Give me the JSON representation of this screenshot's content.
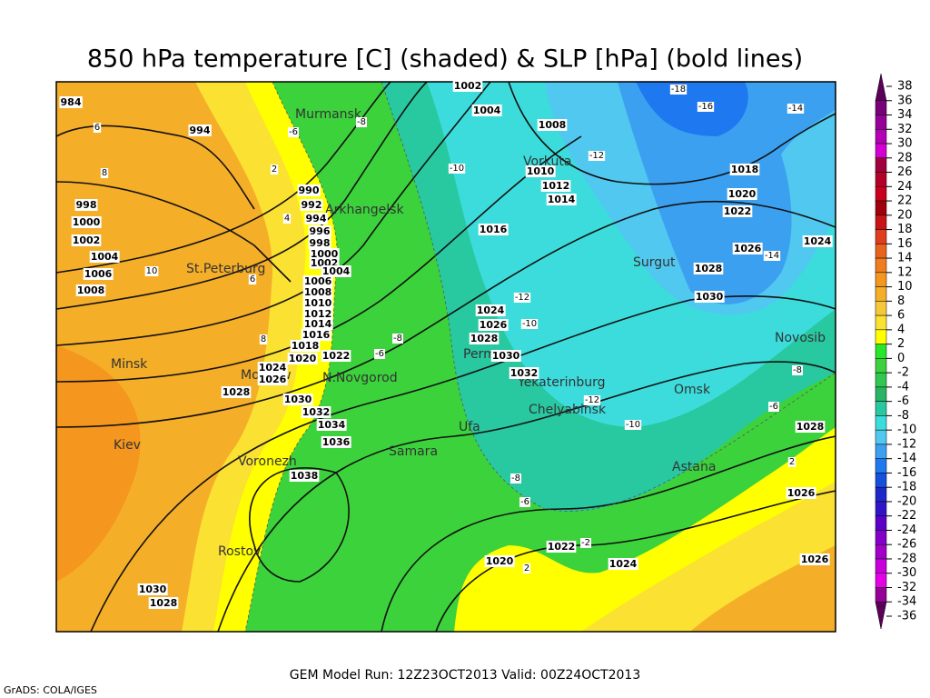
{
  "header": {
    "title": "850 hPa temperature [C] (shaded) & SLP [hPa] (bold lines)"
  },
  "footer": {
    "run": "GEM Model Run: 12Z23OCT2013 Valid: 00Z24OCT2013",
    "credit": "GrADS: COLA/IGES"
  },
  "cities": [
    "Murmansk",
    "Arkhangelsk",
    "St.Peterburg",
    "Minsk",
    "Moskow",
    "N.Novgorod",
    "Kiev",
    "Voronezh",
    "Rostov",
    "Samara",
    "Ufa",
    "Perm",
    "Vorkuta",
    "Surgut",
    "Yekaterinburg",
    "Chelyabinsk",
    "Omsk",
    "Novosib",
    "Astana"
  ],
  "pressure_labels": [
    984,
    994,
    1002,
    1004,
    1008,
    1010,
    1012,
    1014,
    1016,
    990,
    992,
    994,
    996,
    998,
    1000,
    1002,
    1004,
    998,
    1000,
    1002,
    1004,
    1006,
    1008,
    1006,
    1008,
    1010,
    1012,
    1014,
    1016,
    1018,
    1020,
    1022,
    1024,
    1026,
    1028,
    1030,
    1032,
    1034,
    1036,
    1038,
    1024,
    1026,
    1028,
    1030,
    1032,
    1018,
    1020,
    1022,
    1026,
    1024,
    1028,
    1030,
    1028,
    1026,
    1020,
    1022,
    1024,
    1026,
    1030,
    1028
  ],
  "temperature_labels": [
    -18,
    -16,
    -14,
    -6,
    -8,
    -10,
    -12,
    -14,
    -12,
    -10,
    -8,
    -6,
    -12,
    -10,
    -8,
    -6,
    -8,
    -6,
    2,
    -2,
    2,
    10,
    8,
    4,
    6,
    8,
    2,
    6
  ],
  "colorbar": {
    "ticks": [
      38,
      36,
      34,
      32,
      30,
      28,
      26,
      24,
      22,
      20,
      18,
      16,
      14,
      12,
      10,
      8,
      6,
      4,
      2,
      0,
      -2,
      -4,
      -6,
      -8,
      -10,
      -12,
      -14,
      -16,
      -18,
      -20,
      -22,
      -24,
      -26,
      -28,
      -30,
      -32,
      -34,
      -36
    ],
    "colors": [
      "#5a005a",
      "#780078",
      "#960096",
      "#b400b4",
      "#d200d2",
      "#a0003c",
      "#b40028",
      "#c8001e",
      "#a0000a",
      "#c81414",
      "#e03c1e",
      "#e8641e",
      "#f07d1e",
      "#f5961e",
      "#f5ae28",
      "#f5c83c",
      "#fae132",
      "#ffff00",
      "#28e628",
      "#3cd23c",
      "#32c850",
      "#28b464",
      "#28c8a0",
      "#3cdcdc",
      "#50c8f0",
      "#3ca0f0",
      "#1e78f0",
      "#1450dc",
      "#1e28c8",
      "#3214c8",
      "#5a00c8",
      "#8200c8",
      "#a000c8",
      "#c800dc",
      "#e600e6",
      "#960096",
      "#5a005a"
    ]
  }
}
